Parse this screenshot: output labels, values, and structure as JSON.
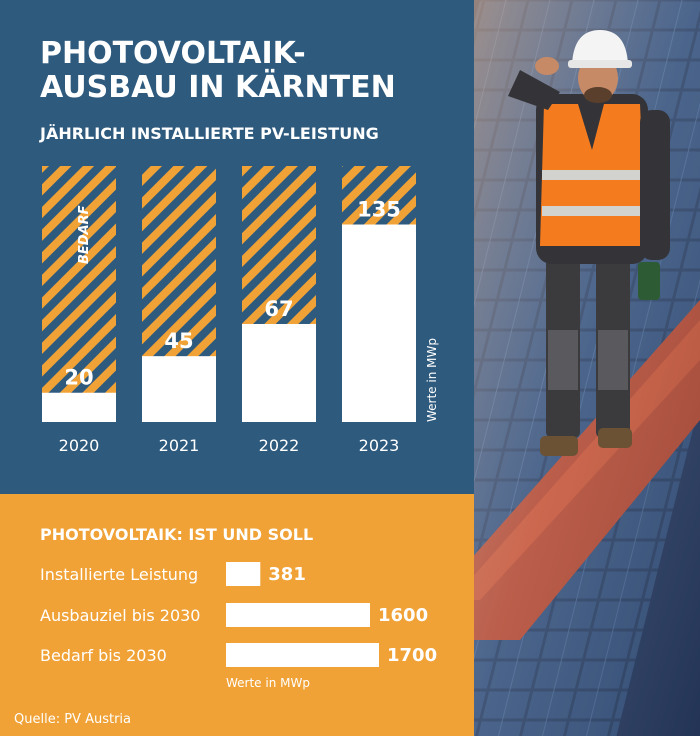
{
  "title_line1": "PHOTOVOLTAIK-",
  "title_line2": "AUSBAU IN KÄRNTEN",
  "colors": {
    "navy": "#2e5a7e",
    "orange": "#f0a236",
    "white": "#ffffff",
    "stripe_dark": "#2e5a7e",
    "stripe_light": "#f0a236"
  },
  "chart_data": [
    {
      "type": "bar",
      "title": "JÄHRLICH INSTALLIERTE PV-LEISTUNG",
      "categories": [
        "2020",
        "2021",
        "2022",
        "2023"
      ],
      "series": [
        {
          "name": "",
          "values": [
            20,
            45,
            67,
            135
          ]
        }
      ],
      "value_labels": [
        "20",
        "45",
        "67",
        "135"
      ],
      "bedarf_label": "BEDARF",
      "unit_note": "Werte in MWp",
      "ylim": [
        0,
        175
      ]
    },
    {
      "type": "bar",
      "orientation": "horizontal",
      "title": "PHOTOVOLTAIK: IST UND SOLL",
      "categories": [
        "Installierte Leistung",
        "Ausbauziel bis 2030",
        "Bedarf bis 2030"
      ],
      "values": [
        381,
        1600,
        1700
      ],
      "value_labels": [
        "381",
        "1600",
        "1700"
      ],
      "unit_note": "Werte in MWp",
      "xlim": [
        0,
        1700
      ]
    }
  ],
  "source": "Quelle: PV Austria",
  "photo": {
    "subject": "worker-on-solar-roof"
  }
}
